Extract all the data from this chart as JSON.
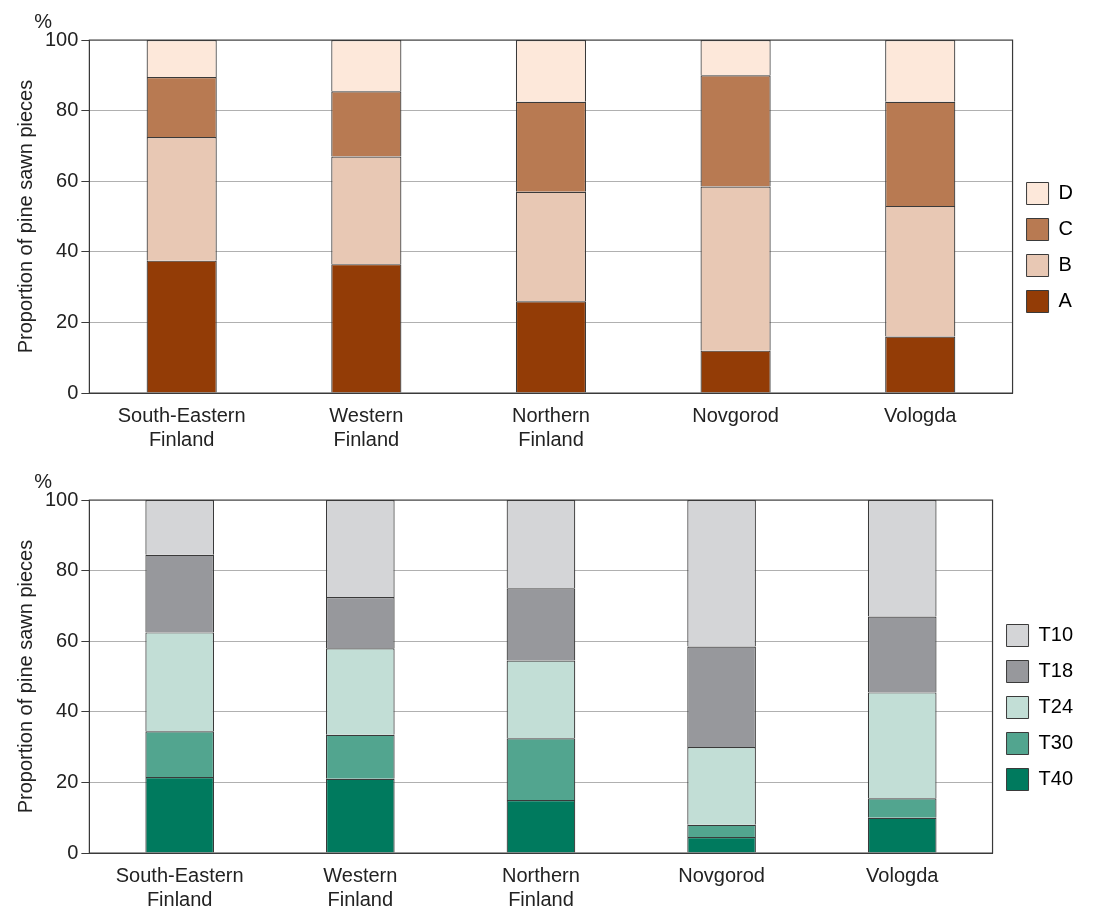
{
  "chart_data": [
    {
      "type": "bar",
      "stacked": true,
      "ylabel": "Proportion of pine sawn pieces",
      "annotations": [
        "%"
      ],
      "categories": [
        "South-Eastern Finland",
        "Western Finland",
        "Northern Finland",
        "Novgorod",
        "Vologda"
      ],
      "ylim": [
        0,
        100
      ],
      "yticks": [
        0,
        20,
        40,
        60,
        80,
        100
      ],
      "grid": "y",
      "legend": "right",
      "series": [
        {
          "name": "A",
          "color": "#933c06",
          "values": [
            37.5,
            36.5,
            26,
            12,
            16
          ]
        },
        {
          "name": "B",
          "color": "#e8c8b4",
          "values": [
            35,
            30.5,
            31,
            46.5,
            37
          ]
        },
        {
          "name": "C",
          "color": "#b87a52",
          "values": [
            17,
            18.5,
            25.5,
            31.5,
            29.5
          ]
        },
        {
          "name": "D",
          "color": "#fde8da",
          "values": [
            10.5,
            14.5,
            17.5,
            10,
            17.5
          ]
        }
      ]
    },
    {
      "type": "bar",
      "stacked": true,
      "ylabel": "Proportion of pine sawn pieces",
      "annotations": [
        "%"
      ],
      "categories": [
        "South-Eastern Finland",
        "Western Finland",
        "Northern Finland",
        "Novgorod",
        "Vologda"
      ],
      "ylim": [
        0,
        100
      ],
      "yticks": [
        0,
        20,
        40,
        60,
        80,
        100
      ],
      "grid": "y",
      "legend": "right",
      "series": [
        {
          "name": "T40",
          "color": "#007a5e",
          "values": [
            21.5,
            21,
            15,
            4.5,
            10
          ]
        },
        {
          "name": "T30",
          "color": "#52a58f",
          "values": [
            13,
            12.5,
            17.5,
            3.5,
            5.5
          ]
        },
        {
          "name": "T24",
          "color": "#c2ded6",
          "values": [
            28,
            24.5,
            22,
            22,
            30
          ]
        },
        {
          "name": "T18",
          "color": "#97989c",
          "values": [
            22,
            14.5,
            20.5,
            28.5,
            21.5
          ]
        },
        {
          "name": "T10",
          "color": "#d4d5d7",
          "values": [
            15.5,
            27.5,
            25,
            41.5,
            33
          ]
        }
      ]
    }
  ]
}
